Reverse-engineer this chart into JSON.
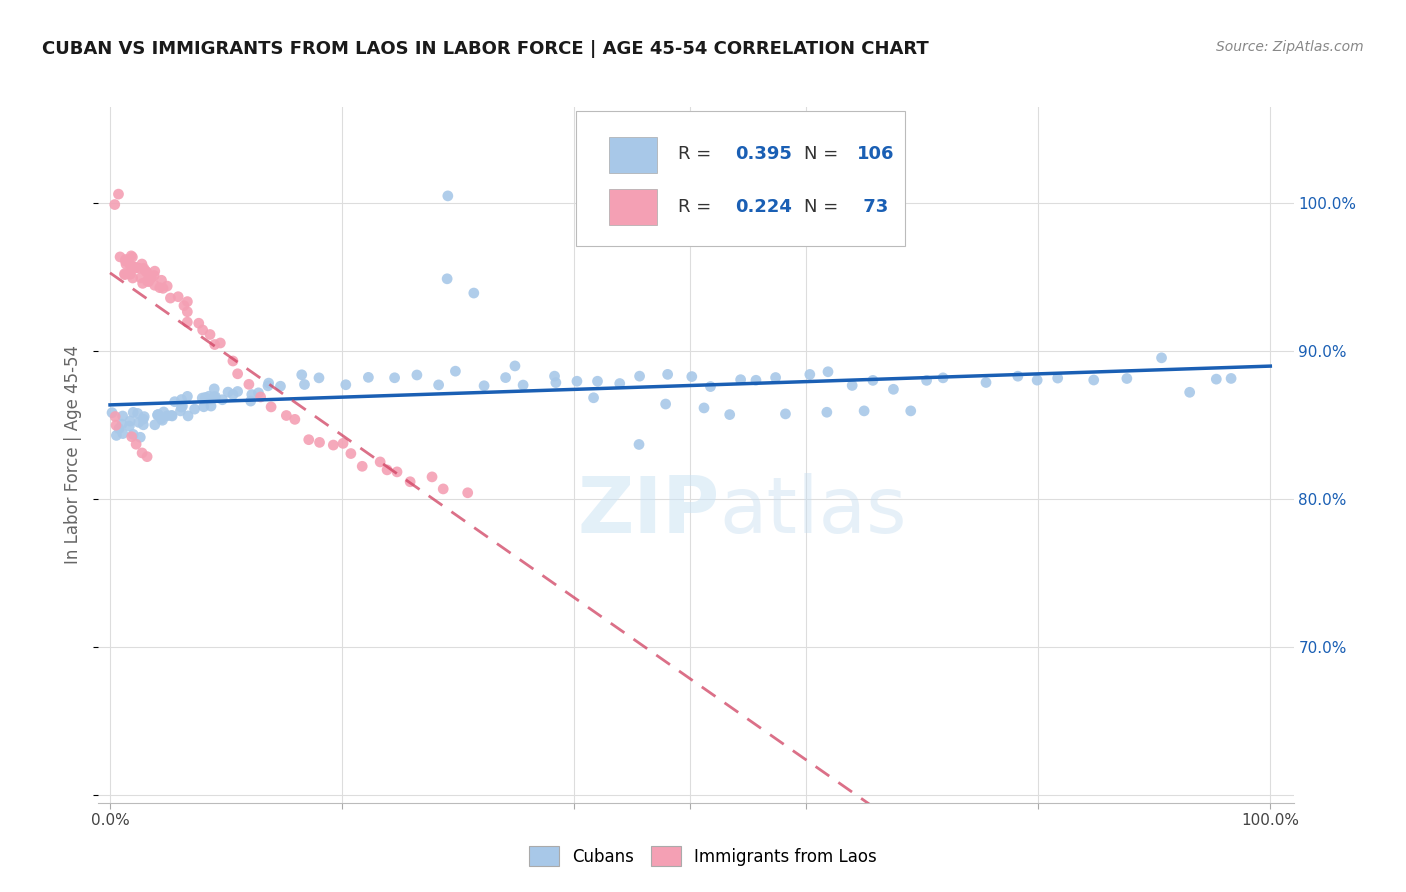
{
  "title": "CUBAN VS IMMIGRANTS FROM LAOS IN LABOR FORCE | AGE 45-54 CORRELATION CHART",
  "source": "Source: ZipAtlas.com",
  "ylabel": "In Labor Force | Age 45-54",
  "y_ticks_right": [
    0.7,
    0.8,
    0.9,
    1.0
  ],
  "y_tick_labels_right": [
    "70.0%",
    "80.0%",
    "90.0%",
    "100.0%"
  ],
  "watermark": "ZIPatlas",
  "legend_cubans_R": "0.395",
  "legend_cubans_N": "106",
  "legend_laos_R": "0.224",
  "legend_laos_N": " 73",
  "cubans_color": "#a8c8e8",
  "laos_color": "#f4a0b4",
  "trendline_cubans_color": "#1a5fb4",
  "trendline_laos_color": "#d04060",
  "background_color": "#ffffff",
  "grid_color": "#dddddd",
  "cubans_x": [
    0.005,
    0.008,
    0.01,
    0.01,
    0.012,
    0.015,
    0.015,
    0.018,
    0.02,
    0.02,
    0.022,
    0.025,
    0.025,
    0.028,
    0.03,
    0.03,
    0.032,
    0.035,
    0.038,
    0.04,
    0.042,
    0.045,
    0.048,
    0.05,
    0.05,
    0.055,
    0.058,
    0.06,
    0.062,
    0.065,
    0.068,
    0.07,
    0.072,
    0.075,
    0.078,
    0.08,
    0.082,
    0.085,
    0.088,
    0.09,
    0.092,
    0.095,
    0.098,
    0.1,
    0.105,
    0.11,
    0.115,
    0.12,
    0.125,
    0.13,
    0.14,
    0.15,
    0.16,
    0.17,
    0.18,
    0.2,
    0.22,
    0.24,
    0.26,
    0.28,
    0.3,
    0.32,
    0.34,
    0.36,
    0.38,
    0.4,
    0.42,
    0.44,
    0.46,
    0.48,
    0.5,
    0.52,
    0.54,
    0.56,
    0.58,
    0.6,
    0.62,
    0.64,
    0.66,
    0.68,
    0.7,
    0.72,
    0.75,
    0.78,
    0.8,
    0.82,
    0.85,
    0.88,
    0.9,
    0.93,
    0.95,
    0.97,
    0.29,
    0.31,
    0.35,
    0.38,
    0.42,
    0.46,
    0.29,
    0.48,
    0.51,
    0.54,
    0.58,
    0.61,
    0.65,
    0.69
  ],
  "cubans_y": [
    0.858,
    0.85,
    0.855,
    0.848,
    0.852,
    0.855,
    0.85,
    0.848,
    0.855,
    0.852,
    0.848,
    0.853,
    0.85,
    0.848,
    0.855,
    0.852,
    0.85,
    0.855,
    0.852,
    0.858,
    0.852,
    0.855,
    0.852,
    0.858,
    0.862,
    0.86,
    0.862,
    0.865,
    0.86,
    0.862,
    0.858,
    0.862,
    0.865,
    0.862,
    0.865,
    0.868,
    0.865,
    0.862,
    0.868,
    0.87,
    0.868,
    0.87,
    0.868,
    0.872,
    0.87,
    0.872,
    0.875,
    0.872,
    0.875,
    0.878,
    0.875,
    0.878,
    0.88,
    0.878,
    0.882,
    0.878,
    0.882,
    0.88,
    0.882,
    0.88,
    0.882,
    0.88,
    0.882,
    0.878,
    0.882,
    0.88,
    0.882,
    0.878,
    0.882,
    0.88,
    0.882,
    0.878,
    0.882,
    0.88,
    0.882,
    0.88,
    0.882,
    0.878,
    0.882,
    0.882,
    0.882,
    0.885,
    0.88,
    0.882,
    0.88,
    0.882,
    0.88,
    0.882,
    0.895,
    0.882,
    0.882,
    0.882,
    0.95,
    0.94,
    0.888,
    0.885,
    0.862,
    0.835,
    1.005,
    0.865,
    0.862,
    0.86,
    0.858,
    0.858,
    0.858,
    0.858
  ],
  "laos_x": [
    0.005,
    0.008,
    0.01,
    0.01,
    0.012,
    0.012,
    0.015,
    0.015,
    0.015,
    0.018,
    0.018,
    0.02,
    0.02,
    0.02,
    0.02,
    0.022,
    0.022,
    0.025,
    0.025,
    0.025,
    0.028,
    0.028,
    0.03,
    0.03,
    0.03,
    0.032,
    0.032,
    0.035,
    0.035,
    0.038,
    0.038,
    0.04,
    0.042,
    0.045,
    0.048,
    0.05,
    0.055,
    0.058,
    0.06,
    0.065,
    0.068,
    0.07,
    0.075,
    0.08,
    0.085,
    0.09,
    0.095,
    0.1,
    0.11,
    0.12,
    0.13,
    0.14,
    0.15,
    0.16,
    0.17,
    0.18,
    0.19,
    0.2,
    0.21,
    0.22,
    0.23,
    0.24,
    0.25,
    0.26,
    0.275,
    0.29,
    0.31,
    0.02,
    0.025,
    0.03,
    0.035,
    0.005,
    0.008
  ],
  "laos_y": [
    0.858,
    0.855,
    0.96,
    0.965,
    0.958,
    0.955,
    0.96,
    0.958,
    0.955,
    0.958,
    0.95,
    0.958,
    0.955,
    0.958,
    0.962,
    0.955,
    0.952,
    0.958,
    0.955,
    0.95,
    0.955,
    0.948,
    0.952,
    0.955,
    0.948,
    0.95,
    0.945,
    0.952,
    0.948,
    0.95,
    0.945,
    0.952,
    0.945,
    0.948,
    0.942,
    0.945,
    0.94,
    0.938,
    0.935,
    0.932,
    0.928,
    0.925,
    0.92,
    0.915,
    0.91,
    0.905,
    0.9,
    0.895,
    0.885,
    0.878,
    0.87,
    0.862,
    0.855,
    0.85,
    0.845,
    0.84,
    0.838,
    0.835,
    0.832,
    0.828,
    0.825,
    0.82,
    0.818,
    0.815,
    0.81,
    0.808,
    0.805,
    0.845,
    0.84,
    0.835,
    0.83,
    1.002,
    1.0
  ]
}
